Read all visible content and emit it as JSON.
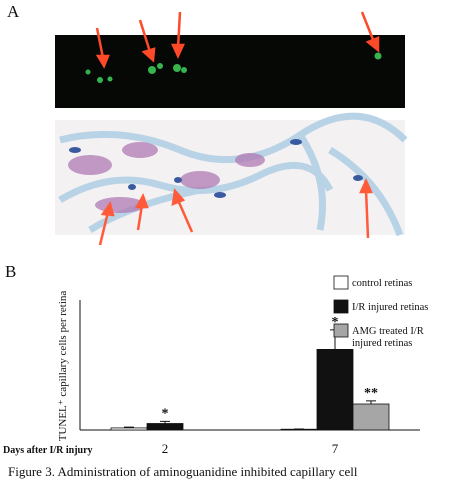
{
  "panel_labels": {
    "a": "A",
    "b": "B"
  },
  "chart_data": {
    "type": "bar",
    "y_label": "TUNEL⁺ capillary cells per retina",
    "x_label": "Days after I/R injury",
    "categories": [
      "2",
      "7"
    ],
    "series": [
      {
        "name": "control retinas",
        "color": "#ffffff",
        "values": [
          8,
          3
        ],
        "errors": [
          3,
          1
        ],
        "significance": [
          null,
          null
        ]
      },
      {
        "name": "I/R injured retinas",
        "color": "#111111",
        "values": [
          25,
          310
        ],
        "errors": [
          8,
          75
        ],
        "significance": [
          "*",
          "*"
        ]
      },
      {
        "name": "AMG treated I/R injured retinas",
        "color": "#a6a6a6",
        "values": [
          null,
          100
        ],
        "errors": [
          null,
          12
        ],
        "significance": [
          null,
          "**"
        ]
      }
    ],
    "ylim": [
      0,
      500
    ],
    "legend": "top-right"
  },
  "caption": "Figure 3.   Administration of aminoguanidine inhibited capillary cell"
}
